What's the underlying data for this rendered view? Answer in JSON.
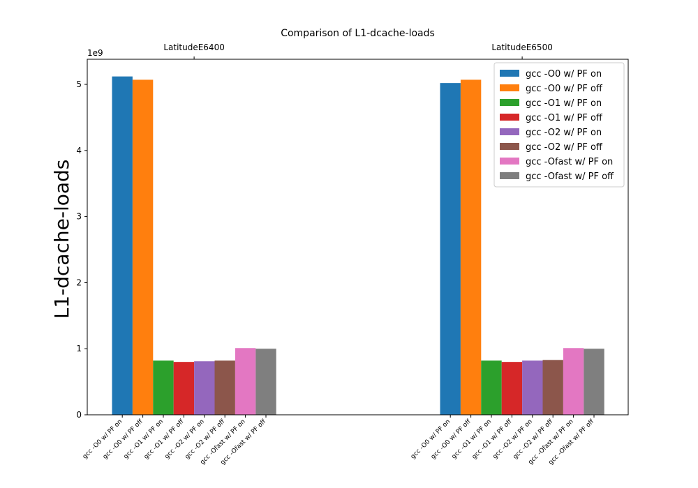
{
  "chart_data": {
    "type": "bar",
    "title": "Comparison of L1-dcache-loads",
    "ylabel": "L1-dcache-loads",
    "y_offset_label": "1e9",
    "ylim": [
      0,
      5.38
    ],
    "yticks": [
      0,
      1,
      2,
      3,
      4,
      5
    ],
    "groups": [
      "LatitudeE6400",
      "LatitudeE6500"
    ],
    "series": [
      {
        "name": "gcc -O0 w/ PF on",
        "color": "#1f77b4",
        "values": [
          5.12,
          5.02
        ]
      },
      {
        "name": "gcc -O0 w/ PF off",
        "color": "#ff7f0e",
        "values": [
          5.07,
          5.07
        ]
      },
      {
        "name": "gcc -O1 w/ PF on",
        "color": "#2ca02c",
        "values": [
          0.82,
          0.82
        ]
      },
      {
        "name": "gcc -O1 w/ PF off",
        "color": "#d62728",
        "values": [
          0.8,
          0.8
        ]
      },
      {
        "name": "gcc -O2 w/ PF on",
        "color": "#9467bd",
        "values": [
          0.81,
          0.82
        ]
      },
      {
        "name": "gcc -O2 w/ PF off",
        "color": "#8c564b",
        "values": [
          0.82,
          0.83
        ]
      },
      {
        "name": "gcc -Ofast w/ PF on",
        "color": "#e377c2",
        "values": [
          1.01,
          1.01
        ]
      },
      {
        "name": "gcc -Ofast w/ PF off",
        "color": "#7f7f7f",
        "values": [
          1.0,
          1.0
        ]
      }
    ],
    "legend_position": "top-right",
    "grid": false
  }
}
